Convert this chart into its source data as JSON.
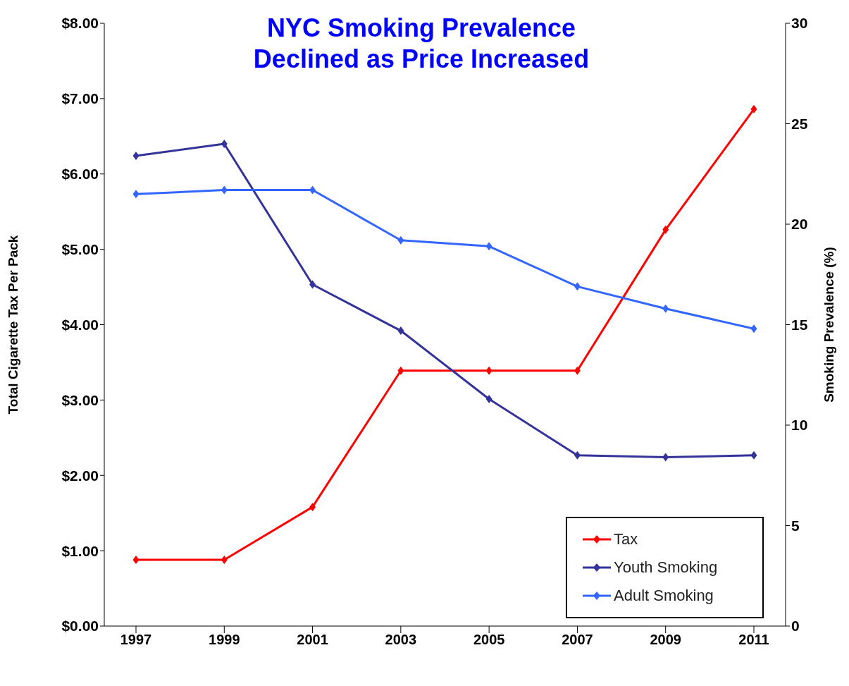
{
  "chart_data": {
    "type": "line",
    "title": "NYC Smoking Prevalence\nDeclined as Price Increased",
    "ylabel": "Total Cigarette Tax Per Pack",
    "y2label": "Smoking Prevalence (%)",
    "categories": [
      "1997",
      "1999",
      "2001",
      "2003",
      "2005",
      "2007",
      "2009",
      "2011"
    ],
    "series": [
      {
        "name": "Tax",
        "color": "#ff0000",
        "values": [
          0.88,
          0.88,
          1.58,
          3.39,
          3.39,
          3.39,
          5.26,
          6.86
        ]
      },
      {
        "name": "Youth Smoking",
        "color": "#333399",
        "axis": "y2",
        "values": [
          23.4,
          24.0,
          17.0,
          14.7,
          11.3,
          8.5,
          8.4,
          8.5
        ]
      },
      {
        "name": "Adult Smoking",
        "color": "#3366ff",
        "axis": "y2",
        "values": [
          21.5,
          21.7,
          21.7,
          19.2,
          18.9,
          16.9,
          15.8,
          14.8
        ]
      }
    ],
    "ylim": [
      0,
      8
    ],
    "yticks": [
      {
        "value": 0,
        "label": "$0.00"
      },
      {
        "value": 1,
        "label": "$1.00"
      },
      {
        "value": 2,
        "label": "$2.00"
      },
      {
        "value": 3,
        "label": "$3.00"
      },
      {
        "value": 4,
        "label": "$4.00"
      },
      {
        "value": 5,
        "label": "$5.00"
      },
      {
        "value": 6,
        "label": "$6.00"
      },
      {
        "value": 7,
        "label": "$7.00"
      },
      {
        "value": 8,
        "label": "$8.00"
      }
    ],
    "y2lim": [
      0,
      30
    ],
    "y2ticks": [
      0,
      5,
      10,
      15,
      20,
      25,
      30
    ],
    "grid": false,
    "legend": "bottom right",
    "marker": "diamond",
    "line_style": "solid"
  }
}
